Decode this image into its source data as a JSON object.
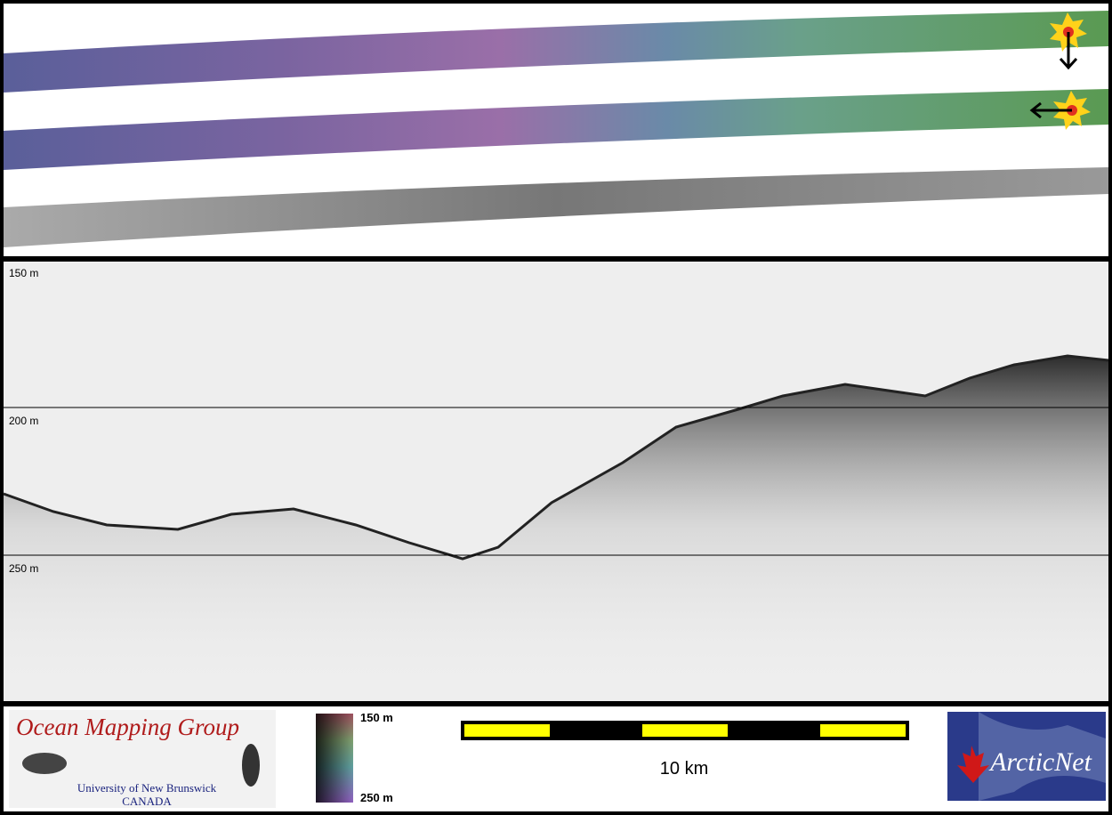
{
  "profile": {
    "depth_labels": [
      "150 m",
      "200 m",
      "250 m"
    ]
  },
  "colorbar": {
    "top_label": "150 m",
    "bottom_label": "250 m"
  },
  "scale_bar": {
    "label": "10 km"
  },
  "logos": {
    "omg_title": "Ocean Mapping Group",
    "omg_university": "University of New Brunswick",
    "omg_country": "CANADA",
    "arcticnet": "ArcticNet"
  }
}
